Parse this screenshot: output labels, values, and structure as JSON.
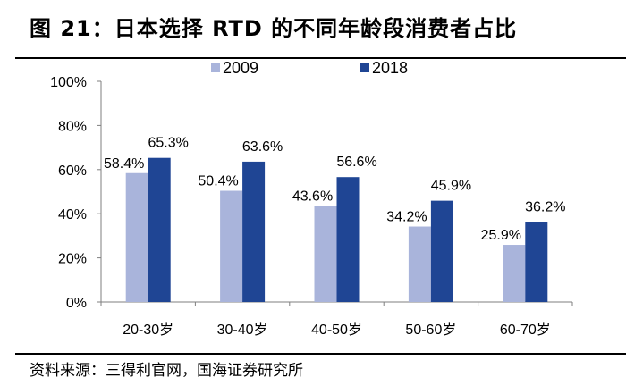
{
  "title": "图 21：日本选择 RTD 的不同年龄段消费者占比",
  "source": "资料来源：三得利官网，国海证券研究所",
  "chart_data": {
    "type": "bar",
    "categories": [
      "20-30岁",
      "30-40岁",
      "40-50岁",
      "50-60岁",
      "60-70岁"
    ],
    "series": [
      {
        "name": "2009",
        "values": [
          58.4,
          50.4,
          43.6,
          34.2,
          25.9
        ],
        "labels": [
          "58.4%",
          "50.4%",
          "43.6%",
          "34.2%",
          "25.9%"
        ],
        "color": "#A9B4DB"
      },
      {
        "name": "2018",
        "values": [
          65.3,
          63.6,
          56.6,
          45.9,
          36.2
        ],
        "labels": [
          "65.3%",
          "63.6%",
          "56.6%",
          "45.9%",
          "36.2%"
        ],
        "color": "#1F4594"
      }
    ],
    "ylim": [
      0,
      100
    ],
    "yticks": [
      "0%",
      "20%",
      "40%",
      "60%",
      "80%",
      "100%"
    ],
    "legend": "top",
    "grid": false
  }
}
